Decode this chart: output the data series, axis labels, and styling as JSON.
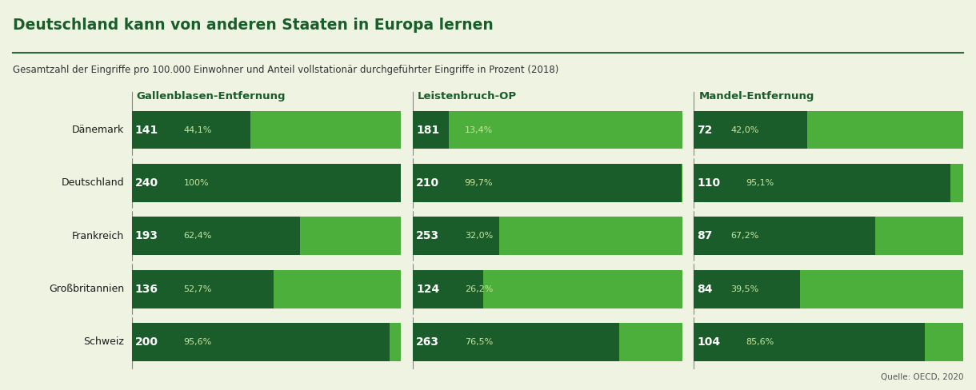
{
  "title": "Deutschland kann von anderen Staaten in Europa lernen",
  "subtitle": "Gesamtzahl der Eingriffe pro 100.000 Einwohner und Anteil vollstationär durchgeführter Eingriffe in Prozent (2018)",
  "source": "Quelle: OECD, 2020",
  "background_color": "#eef3e2",
  "categories": [
    "Dänemark",
    "Deutschland",
    "Frankreich",
    "Großbritannien",
    "Schweiz"
  ],
  "groups": [
    {
      "title": "Gallenblasen-Entfernung",
      "total": [
        141,
        240,
        193,
        136,
        200
      ],
      "percent": [
        44.1,
        100.0,
        62.4,
        52.7,
        95.6
      ]
    },
    {
      "title": "Leistenbruch-OP",
      "total": [
        181,
        210,
        253,
        124,
        263
      ],
      "percent": [
        13.4,
        99.7,
        32.0,
        26.2,
        76.5
      ]
    },
    {
      "title": "Mandel-Entfernung",
      "total": [
        72,
        110,
        87,
        84,
        104
      ],
      "percent": [
        42.0,
        95.1,
        67.2,
        39.5,
        85.6
      ]
    }
  ],
  "percent_labels": [
    [
      "44,1%",
      "100%",
      "62,4%",
      "52,7%",
      "95,6%"
    ],
    [
      "13,4%",
      "99,7%",
      "32,0%",
      "26,2%",
      "76,5%"
    ],
    [
      "42,0%",
      "95,1%",
      "67,2%",
      "39,5%",
      "85,6%"
    ]
  ],
  "color_dark": "#1a5c2a",
  "color_light": "#4caf3c",
  "separator_color": "#eef3e2",
  "title_color": "#1a5c2a",
  "line_color": "#2d6a35"
}
